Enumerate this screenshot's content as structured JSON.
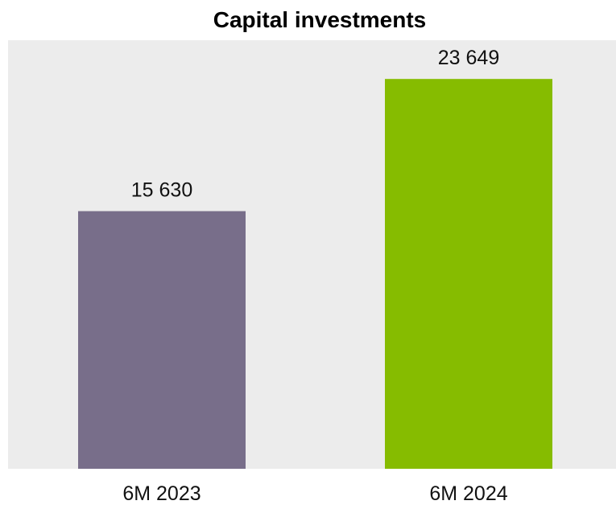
{
  "chart_data": {
    "type": "bar",
    "title": "Capital investments",
    "categories": [
      "6M 2023",
      "6M 2024"
    ],
    "values": [
      15630,
      23649
    ],
    "value_labels": [
      "15 630",
      "23 649"
    ],
    "bar_colors": [
      "#786e8a",
      "#86bc00"
    ],
    "plot_background": "#ececec",
    "xlabel": "",
    "ylabel": "",
    "ylim": [
      0,
      26000
    ],
    "grid": false,
    "legend": "none"
  }
}
